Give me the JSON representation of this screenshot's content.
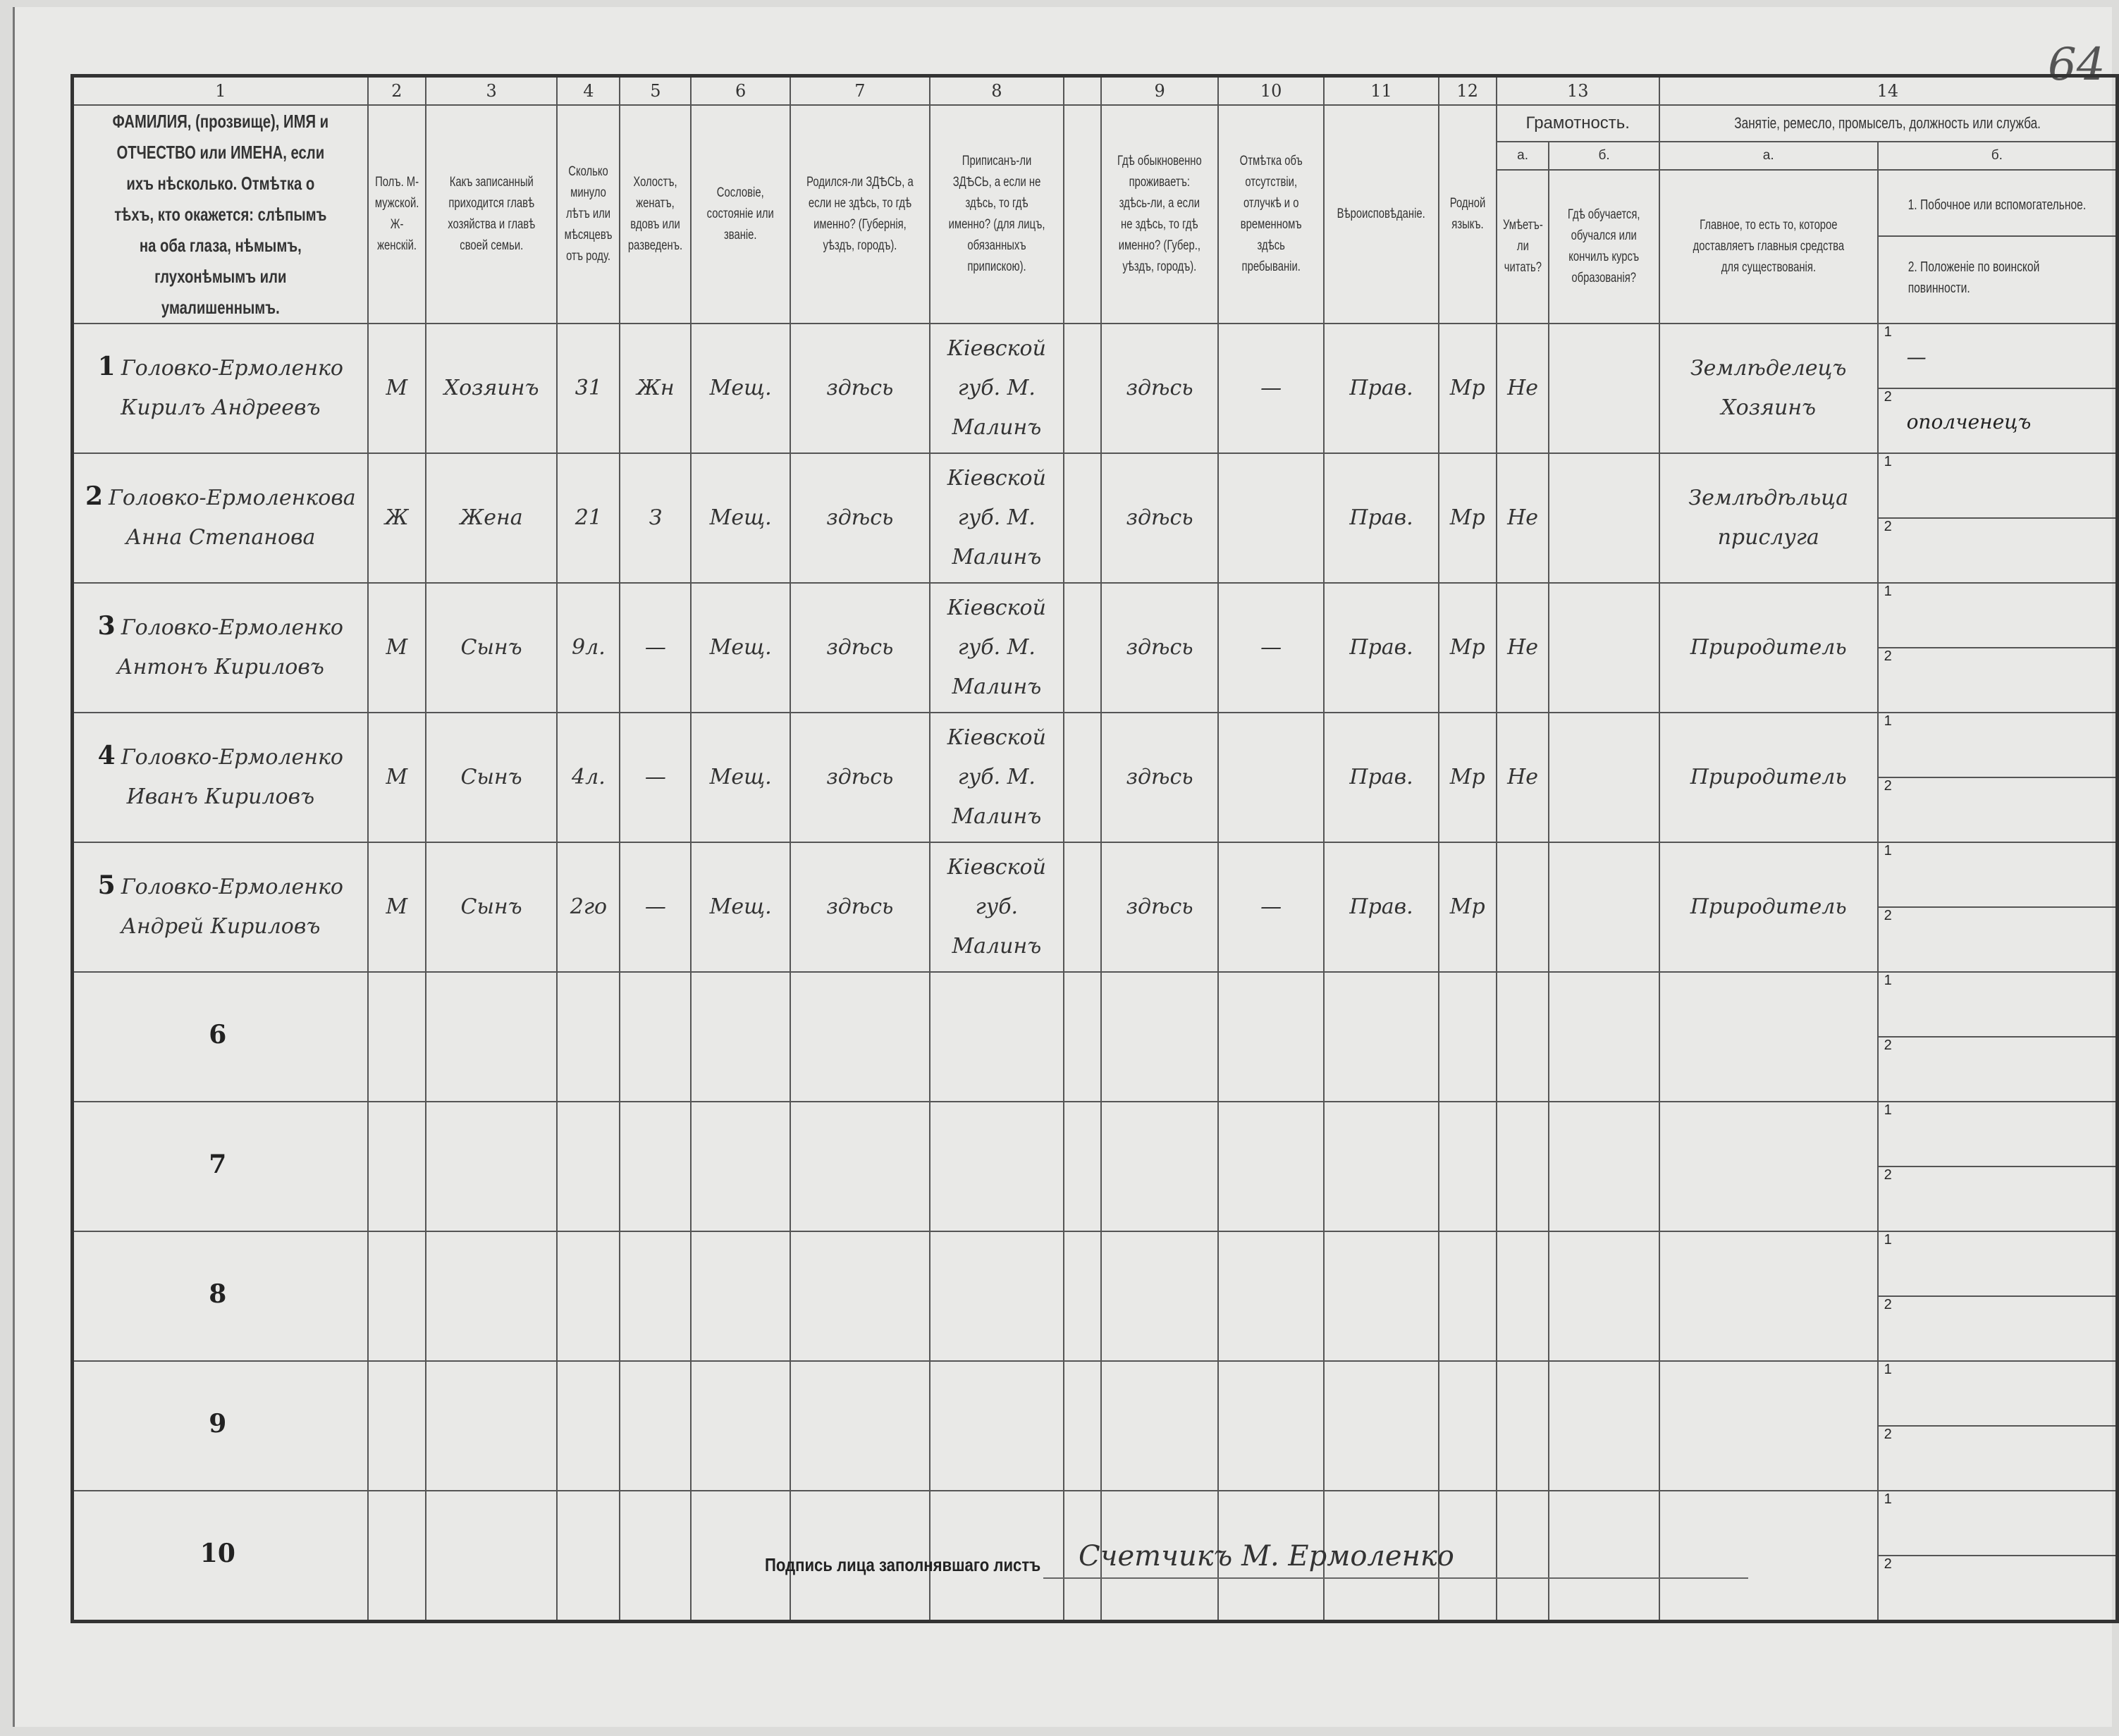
{
  "page_number": "64",
  "header": {
    "numbers": [
      "1",
      "2",
      "3",
      "4",
      "5",
      "6",
      "7",
      "8",
      "",
      "9",
      "10",
      "11",
      "12",
      "13",
      "14"
    ],
    "col1": "ФАМИЛИЯ, (прозвище), ИМЯ и ОТЧЕСТВО или ИМЕНА, если ихъ нѣсколько. Отмѣтка о тѣхъ, кто окажется: слѣпымъ на оба глаза, нѣмымъ, глухонѣмымъ или умалишеннымъ.",
    "col2": "Полъ. М-мужской. Ж-женскій.",
    "col3": "Какъ записанный приходится главѣ хозяйства и главѣ своей семьи.",
    "col4": "Сколько минуло лѣтъ или мѣсяцевъ отъ роду.",
    "col5": "Холостъ, женатъ, вдовъ или разведенъ.",
    "col6": "Сословіе, состояніе или званіе.",
    "col7": "Родился-ли ЗДѢСЬ, а если не здѣсь, то гдѣ именно? (Губернія, уѣздъ, городъ).",
    "col8": "Приписанъ-ли ЗДѢСЬ, а если не здѣсь, то гдѣ именно? (для лицъ, обязанныхъ припискою).",
    "col9": "Гдѣ обыкновенно проживаетъ: здѣсь-ли, а если не здѣсь, то гдѣ именно? (Губер., уѣздъ, городъ).",
    "col10": "Отмѣтка объ отсутствіи, отлучкѣ и о временномъ здѣсь пребываніи.",
    "col11": "Вѣроисповѣданіе.",
    "col12": "Родной языкъ.",
    "col13": {
      "title": "Грамотность.",
      "a": "а.",
      "b": "б.",
      "a_text": "Умѣетъ-ли читать?",
      "b_text": "Гдѣ обучается, обучался или кончилъ курсъ образованія?"
    },
    "col14": {
      "title": "Занятіе, ремесло, промыселъ, должность или служба.",
      "a": "а.",
      "b": "б.",
      "a_text": "Главное, то есть то, которое доставляетъ главныя средства для существованія.",
      "b_text1": "1. Побочное или вспомогательное.",
      "b_text2": "2. Положеніе по воинской повинности."
    }
  },
  "rows": [
    {
      "n": "1",
      "name": "Головко-Ермоленко Кирилъ Андреевъ",
      "sex": "М",
      "relation": "Хозяинъ",
      "age": "31",
      "marital": "Жн",
      "estate": "Мещ.",
      "born": "здѣсь",
      "registered": "Кіевской губ. М. Малинъ",
      "resides": "здѣсь",
      "absence": "—",
      "religion": "Прав.",
      "language": "Мр",
      "literate": "Не",
      "education": "",
      "occupation": "Землѣделецъ Хозяинъ",
      "side1": "—",
      "side2": "ополченецъ"
    },
    {
      "n": "2",
      "name": "Головко-Ермоленкова Анна Степанова",
      "sex": "Ж",
      "relation": "Жена",
      "age": "21",
      "marital": "З",
      "estate": "Мещ.",
      "born": "здѣсь",
      "registered": "Кіевской губ. М. Малинъ",
      "resides": "здѣсь",
      "absence": "",
      "religion": "Прав.",
      "language": "Мр",
      "literate": "Не",
      "education": "",
      "occupation": "Землѣдѣльца прислуга",
      "side1": "",
      "side2": ""
    },
    {
      "n": "3",
      "name": "Головко-Ермоленко Антонъ Кириловъ",
      "sex": "М",
      "relation": "Сынъ",
      "age": "9л.",
      "marital": "—",
      "estate": "Мещ.",
      "born": "здѣсь",
      "registered": "Кіевской губ. М. Малинъ",
      "resides": "здѣсь",
      "absence": "—",
      "religion": "Прав.",
      "language": "Мр",
      "literate": "Не",
      "education": "",
      "occupation": "Природитель",
      "side1": "",
      "side2": ""
    },
    {
      "n": "4",
      "name": "Головко-Ермоленко Иванъ Кириловъ",
      "sex": "М",
      "relation": "Сынъ",
      "age": "4л.",
      "marital": "—",
      "estate": "Мещ.",
      "born": "здѣсь",
      "registered": "Кіевской губ. М. Малинъ",
      "resides": "здѣсь",
      "absence": "",
      "religion": "Прав.",
      "language": "Мр",
      "literate": "Не",
      "education": "",
      "occupation": "Природитель",
      "side1": "",
      "side2": ""
    },
    {
      "n": "5",
      "name": "Головко-Ермоленко Андрей Кириловъ",
      "sex": "М",
      "relation": "Сынъ",
      "age": "2го",
      "marital": "—",
      "estate": "Мещ.",
      "born": "здѣсь",
      "registered": "Кіевской губ. Малинъ",
      "resides": "здѣсь",
      "absence": "—",
      "religion": "Прав.",
      "language": "Мр",
      "literate": "",
      "education": "",
      "occupation": "Природитель",
      "side1": "",
      "side2": ""
    },
    {
      "n": "6"
    },
    {
      "n": "7"
    },
    {
      "n": "8"
    },
    {
      "n": "9"
    },
    {
      "n": "10"
    }
  ],
  "footer": {
    "signature_label": "Подпись лица заполнявшаго листъ",
    "signature": "Счетчикъ М. Ермоленко"
  }
}
